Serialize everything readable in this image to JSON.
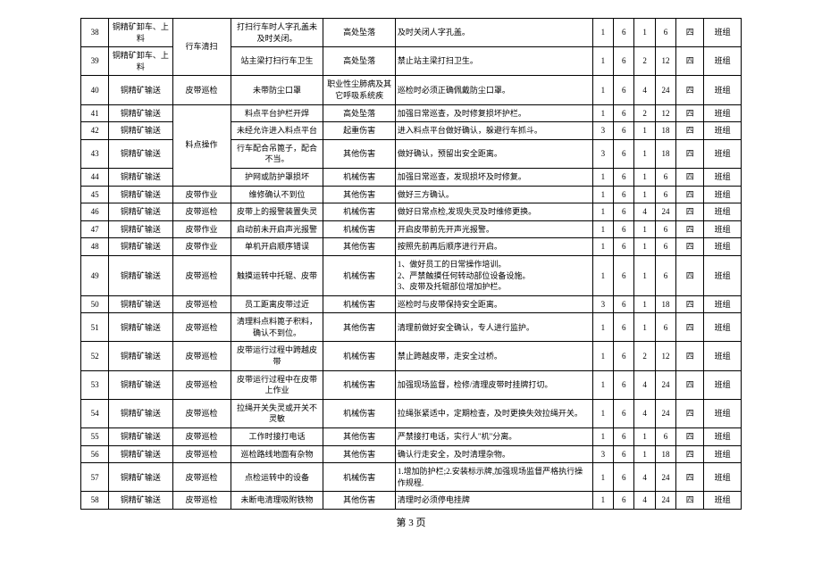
{
  "page_label": "第 3 页",
  "rows": [
    {
      "idx": "38",
      "task": "铜精矿卸车、上料",
      "op": "行车清扫",
      "detail": "打扫行车时人字孔盖未及时关闭。",
      "hazard": "高处坠落",
      "measure": "及时关闭人字孔盖。",
      "n1": "1",
      "n2": "6",
      "n3": "1",
      "n4": "6",
      "level": "四",
      "group": "班组",
      "rowspan_op": 2
    },
    {
      "idx": "39",
      "task": "铜精矿卸车、上料",
      "op": "",
      "detail": "站主梁打扫行车卫生",
      "hazard": "高处坠落",
      "measure": "禁止站主梁打扫卫生。",
      "n1": "1",
      "n2": "6",
      "n3": "2",
      "n4": "12",
      "level": "四",
      "group": "班组"
    },
    {
      "idx": "40",
      "task": "铜精矿输送",
      "op": "皮带巡检",
      "detail": "未带防尘口罩",
      "hazard": "职业性尘肺病及其它呼吸系统疾",
      "measure": "巡检时必须正确佩戴防尘口罩。",
      "n1": "1",
      "n2": "6",
      "n3": "4",
      "n4": "24",
      "level": "四",
      "group": "班组"
    },
    {
      "idx": "41",
      "task": "铜精矿输送",
      "op": "料点操作",
      "detail": "料点平台护栏开焊",
      "hazard": "高处坠落",
      "measure": "加强日常巡查，及时修复损坏护栏。",
      "n1": "1",
      "n2": "6",
      "n3": "2",
      "n4": "12",
      "level": "四",
      "group": "班组",
      "rowspan_op": 4
    },
    {
      "idx": "42",
      "task": "铜精矿输送",
      "op": "",
      "detail": "未经允许进入料点平台",
      "hazard": "起重伤害",
      "measure": "进入料点平台做好确认，躲避行车抓斗。",
      "n1": "3",
      "n2": "6",
      "n3": "1",
      "n4": "18",
      "level": "四",
      "group": "班组"
    },
    {
      "idx": "43",
      "task": "铜精矿输送",
      "op": "",
      "detail": "行车配合吊篦子，配合不当。",
      "hazard": "其他伤害",
      "measure": "做好确认，预留出安全距离。",
      "n1": "3",
      "n2": "6",
      "n3": "1",
      "n4": "18",
      "level": "四",
      "group": "班组"
    },
    {
      "idx": "44",
      "task": "铜精矿输送",
      "op": "",
      "detail": "护网或防护罩损坏",
      "hazard": "机械伤害",
      "measure": "加强日常巡查，发现损坏及时修复。",
      "n1": "1",
      "n2": "6",
      "n3": "1",
      "n4": "6",
      "level": "四",
      "group": "班组"
    },
    {
      "idx": "45",
      "task": "铜精矿输送",
      "op": "皮带作业",
      "detail": "维修确认不到位",
      "hazard": "其他伤害",
      "measure": "做好三方确认。",
      "n1": "1",
      "n2": "6",
      "n3": "1",
      "n4": "6",
      "level": "四",
      "group": "班组"
    },
    {
      "idx": "46",
      "task": "铜精矿输送",
      "op": "皮带巡检",
      "detail": "皮带上的报警装置失灵",
      "hazard": "机械伤害",
      "measure": "做好日常点检,发现失灵及时维修更换。",
      "n1": "1",
      "n2": "6",
      "n3": "4",
      "n4": "24",
      "level": "四",
      "group": "班组"
    },
    {
      "idx": "47",
      "task": "铜精矿输送",
      "op": "皮带作业",
      "detail": "启动前未开启声光报警",
      "hazard": "机械伤害",
      "measure": "开启皮带前先开声光报警。",
      "n1": "1",
      "n2": "6",
      "n3": "1",
      "n4": "6",
      "level": "四",
      "group": "班组"
    },
    {
      "idx": "48",
      "task": "铜精矿输送",
      "op": "皮带作业",
      "detail": "单机开启顺序错误",
      "hazard": "其他伤害",
      "measure": "按照先前再后顺序进行开启。",
      "n1": "1",
      "n2": "6",
      "n3": "1",
      "n4": "6",
      "level": "四",
      "group": "班组"
    },
    {
      "idx": "49",
      "task": "铜精矿输送",
      "op": "皮带巡检",
      "detail": "触摸运转中托辊、皮带",
      "hazard": "机械伤害",
      "measure": "1、做好员工的日常操作培训。\n2、严禁触摸任何转动部位设备设施。\n3、皮带及托辊部位增加护栏。",
      "n1": "1",
      "n2": "6",
      "n3": "1",
      "n4": "6",
      "level": "四",
      "group": "班组"
    },
    {
      "idx": "50",
      "task": "铜精矿输送",
      "op": "皮带巡检",
      "detail": "员工距离皮带过近",
      "hazard": "机械伤害",
      "measure": "巡检时与皮带保持安全距离。",
      "n1": "3",
      "n2": "6",
      "n3": "1",
      "n4": "18",
      "level": "四",
      "group": "班组"
    },
    {
      "idx": "51",
      "task": "铜精矿输送",
      "op": "皮带巡检",
      "detail": "清理料点料篦子积料，确认不到位。",
      "hazard": "其他伤害",
      "measure": "清理前做好安全确认，专人进行监护。",
      "n1": "1",
      "n2": "6",
      "n3": "1",
      "n4": "6",
      "level": "四",
      "group": "班组"
    },
    {
      "idx": "52",
      "task": "铜精矿输送",
      "op": "皮带巡检",
      "detail": "皮带运行过程中跨越皮带",
      "hazard": "机械伤害",
      "measure": "禁止跨越皮带，走安全过桥。",
      "n1": "1",
      "n2": "6",
      "n3": "2",
      "n4": "12",
      "level": "四",
      "group": "班组"
    },
    {
      "idx": "53",
      "task": "铜精矿输送",
      "op": "皮带巡检",
      "detail": "皮带运行过程中在皮带上作业",
      "hazard": "机械伤害",
      "measure": "加强现场监督，检修/清理皮带时挂牌打切。",
      "n1": "1",
      "n2": "6",
      "n3": "4",
      "n4": "24",
      "level": "四",
      "group": "班组"
    },
    {
      "idx": "54",
      "task": "铜精矿输送",
      "op": "皮带巡检",
      "detail": "拉绳开关失灵或开关不灵敏",
      "hazard": "机械伤害",
      "measure": "拉绳张紧适中，定期检查，及时更换失效拉绳开关。",
      "n1": "1",
      "n2": "6",
      "n3": "4",
      "n4": "24",
      "level": "四",
      "group": "班组"
    },
    {
      "idx": "55",
      "task": "铜精矿输送",
      "op": "皮带巡检",
      "detail": "工作时接打电话",
      "hazard": "其他伤害",
      "measure": "严禁接打电话，实行人\"机\"分离。",
      "n1": "1",
      "n2": "6",
      "n3": "1",
      "n4": "6",
      "level": "四",
      "group": "班组"
    },
    {
      "idx": "56",
      "task": "铜精矿输送",
      "op": "皮带巡检",
      "detail": "巡检路线地面有杂物",
      "hazard": "其他伤害",
      "measure": "确认行走安全，及时清理杂物。",
      "n1": "3",
      "n2": "6",
      "n3": "1",
      "n4": "18",
      "level": "四",
      "group": "班组"
    },
    {
      "idx": "57",
      "task": "铜精矿输送",
      "op": "皮带巡检",
      "detail": "点检运转中的设备",
      "hazard": "机械伤害",
      "measure": "1.增加防护栏;2.安装标示牌,加强现场监督严格执行操作规程.",
      "n1": "1",
      "n2": "6",
      "n3": "4",
      "n4": "24",
      "level": "四",
      "group": "班组"
    },
    {
      "idx": "58",
      "task": "铜精矿输送",
      "op": "皮带巡检",
      "detail": "未断电清理吸附铁物",
      "hazard": "其他伤害",
      "measure": "清理时必须停电挂牌",
      "n1": "1",
      "n2": "6",
      "n3": "4",
      "n4": "24",
      "level": "四",
      "group": "班组"
    }
  ]
}
